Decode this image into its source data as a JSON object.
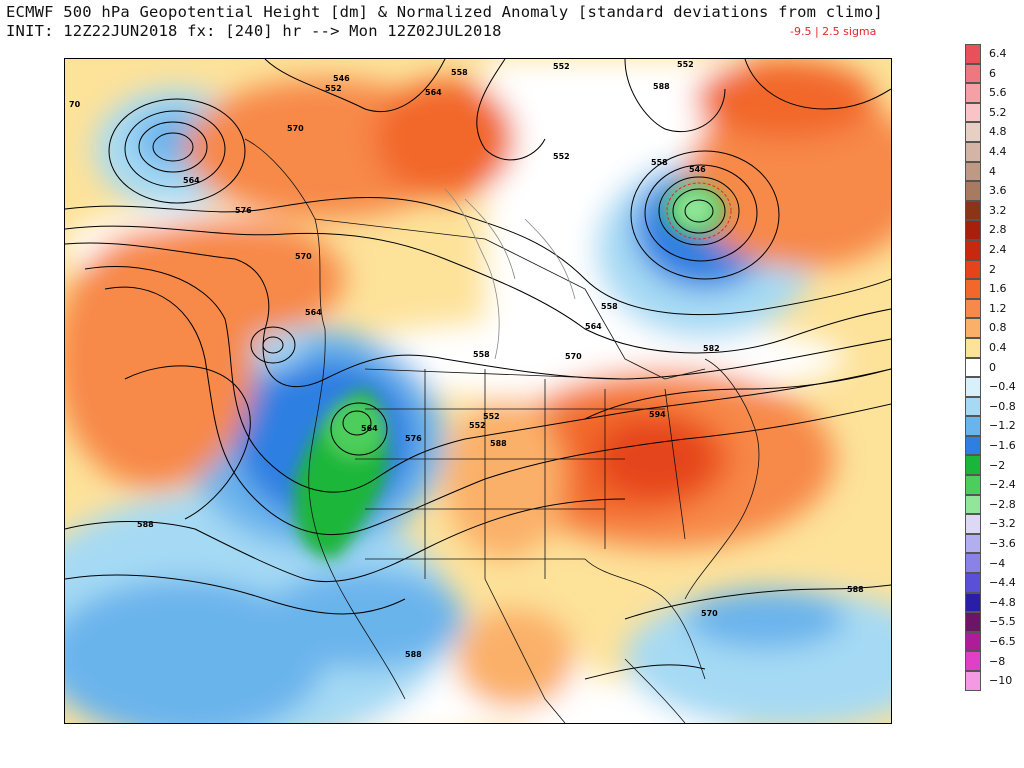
{
  "header": {
    "title": "ECMWF 500 hPa Geopotential Height [dm] & Normalized Anomaly [standard deviations from climo]",
    "init": "INIT: 12Z22JUN2018 fx: [240] hr --> Mon 12Z02JUL2018",
    "extrema": "-9.5 | 2.5 sigma"
  },
  "colorbar": {
    "entries": [
      {
        "label": "6.4",
        "color": "#e8515a"
      },
      {
        "label": "6",
        "color": "#ef7880"
      },
      {
        "label": "5.6",
        "color": "#f4a0a4"
      },
      {
        "label": "5.2",
        "color": "#f8c4c6"
      },
      {
        "label": "4.8",
        "color": "#e8cfc4"
      },
      {
        "label": "4.4",
        "color": "#d4b4a4"
      },
      {
        "label": "4",
        "color": "#bf9984"
      },
      {
        "label": "3.6",
        "color": "#a87a62"
      },
      {
        "label": "3.2",
        "color": "#8c3418"
      },
      {
        "label": "2.8",
        "color": "#a8200c"
      },
      {
        "label": "2.4",
        "color": "#c92810"
      },
      {
        "label": "2",
        "color": "#e5441a"
      },
      {
        "label": "1.6",
        "color": "#f2672a"
      },
      {
        "label": "1.2",
        "color": "#f7894a"
      },
      {
        "label": "0.8",
        "color": "#fbb069"
      },
      {
        "label": "0.4",
        "color": "#fde29a"
      },
      {
        "label": "0",
        "color": "#ffffff"
      },
      {
        "label": "−0.4",
        "color": "#d7f0fb"
      },
      {
        "label": "−0.8",
        "color": "#a6daf4"
      },
      {
        "label": "−1.2",
        "color": "#6ab4ec"
      },
      {
        "label": "−1.6",
        "color": "#2f7fe2"
      },
      {
        "label": "−2",
        "color": "#1ab63a"
      },
      {
        "label": "−2.4",
        "color": "#4dce5c"
      },
      {
        "label": "−2.8",
        "color": "#92e69a"
      },
      {
        "label": "−3.2",
        "color": "#dcd8f6"
      },
      {
        "label": "−3.6",
        "color": "#b3aef0"
      },
      {
        "label": "−4",
        "color": "#8a82e6"
      },
      {
        "label": "−4.4",
        "color": "#5a50d8"
      },
      {
        "label": "−4.8",
        "color": "#2a1ea8"
      },
      {
        "label": "−5.5",
        "color": "#6e1466"
      },
      {
        "label": "−6.5",
        "color": "#b01c98"
      },
      {
        "label": "−8",
        "color": "#e040c8"
      },
      {
        "label": "−10",
        "color": "#f49ae4"
      }
    ]
  },
  "map": {
    "contour_labels": [
      "546",
      "558",
      "552",
      "552",
      "552",
      "564",
      "570",
      "564",
      "576",
      "570",
      "564",
      "546",
      "552",
      "558",
      "564",
      "570",
      "552",
      "582",
      "564",
      "576",
      "552",
      "558",
      "594",
      "588",
      "588",
      "588",
      "588",
      "570",
      "558",
      "588",
      "70"
    ]
  }
}
